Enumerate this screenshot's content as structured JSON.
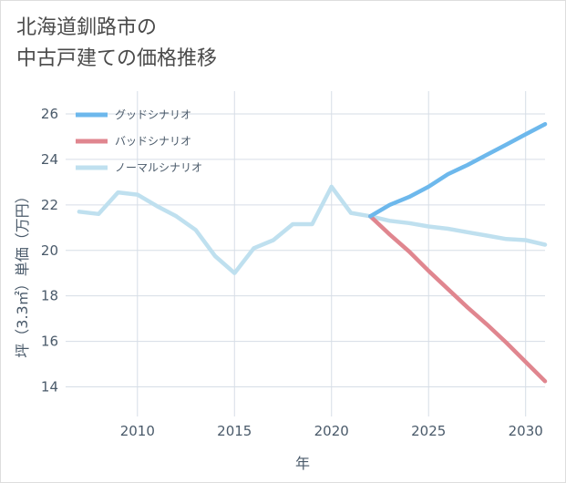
{
  "chart_data": {
    "type": "line",
    "title_lines": [
      "北海道釧路市の",
      "中古戸建ての価格推移"
    ],
    "xlabel": "年",
    "ylabel": "坪（3.3㎡）単価（万円）",
    "xlim": [
      2006.3,
      2031
    ],
    "ylim": [
      12.7,
      27
    ],
    "xticks": [
      2010,
      2015,
      2020,
      2025,
      2030
    ],
    "yticks": [
      14,
      16,
      18,
      20,
      22,
      24,
      26
    ],
    "grid": true,
    "legend_position": "top-left",
    "series": [
      {
        "name": "グッドシナリオ",
        "color": "#6db8ec",
        "x": [
          2022,
          2023,
          2024,
          2025,
          2026,
          2027,
          2028,
          2029,
          2030,
          2031
        ],
        "y": [
          21.5,
          22.0,
          22.35,
          22.8,
          23.35,
          23.75,
          24.2,
          24.65,
          25.1,
          25.55
        ]
      },
      {
        "name": "バッドシナリオ",
        "color": "#e0868f",
        "x": [
          2022,
          2023,
          2024,
          2025,
          2026,
          2027,
          2028,
          2029,
          2030,
          2031
        ],
        "y": [
          21.5,
          20.7,
          19.95,
          19.1,
          18.3,
          17.5,
          16.75,
          15.95,
          15.1,
          14.25
        ]
      },
      {
        "name": "ノーマルシナリオ",
        "color": "#bfe0ef",
        "x": [
          2007,
          2008,
          2009,
          2010,
          2011,
          2012,
          2013,
          2014,
          2015,
          2016,
          2017,
          2018,
          2019,
          2020,
          2021,
          2022,
          2023,
          2024,
          2025,
          2026,
          2027,
          2028,
          2029,
          2030,
          2031
        ],
        "y": [
          21.7,
          21.6,
          22.55,
          22.45,
          21.95,
          21.5,
          20.9,
          19.75,
          19.0,
          20.1,
          20.45,
          21.15,
          21.15,
          22.8,
          21.65,
          21.5,
          21.3,
          21.2,
          21.05,
          20.95,
          20.8,
          20.65,
          20.5,
          20.45,
          20.25
        ]
      }
    ]
  }
}
